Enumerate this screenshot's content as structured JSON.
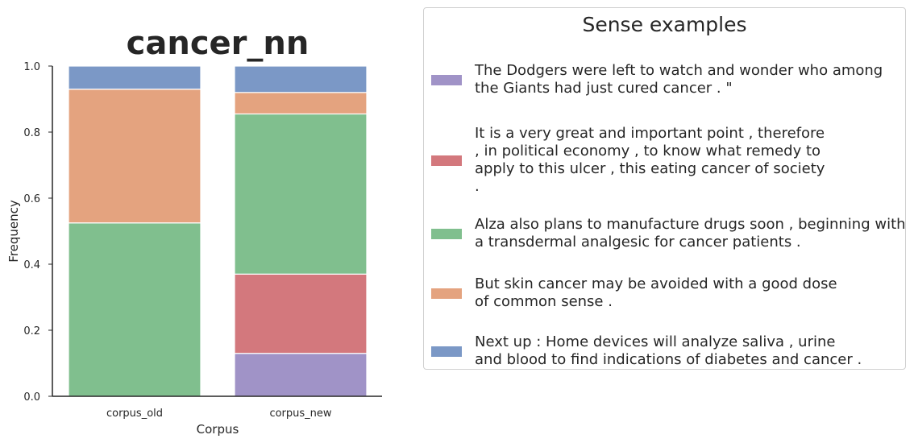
{
  "chart_data": {
    "type": "bar",
    "stacked": true,
    "title": "cancer_nn",
    "xlabel": "Corpus",
    "ylabel": "Frequency",
    "ylim": [
      0,
      1.0
    ],
    "yticks": [
      "0.0",
      "0.2",
      "0.4",
      "0.6",
      "0.8",
      "1.0"
    ],
    "categories": [
      "corpus_old",
      "corpus_new"
    ],
    "series": [
      {
        "color": "#a093c7",
        "values": [
          0.0,
          0.13
        ]
      },
      {
        "color": "#d3787d",
        "values": [
          0.0,
          0.24
        ]
      },
      {
        "color": "#80bf8e",
        "values": [
          0.525,
          0.485
        ]
      },
      {
        "color": "#e4a37f",
        "values": [
          0.405,
          0.065
        ]
      },
      {
        "color": "#7b98c6",
        "values": [
          0.07,
          0.08
        ]
      }
    ],
    "legend": {
      "title": "Sense examples",
      "placement": "outside-right",
      "entries": [
        {
          "color": "#a093c7",
          "lines": [
            "The Dodgers were left to watch and wonder who among",
            "the Giants had just cured cancer . \""
          ]
        },
        {
          "color": "#d3787d",
          "lines": [
            "It is a very great and important point , therefore",
            ", in political economy , to know what remedy to",
            "apply to this ulcer , this eating cancer of society",
            "."
          ]
        },
        {
          "color": "#80bf8e",
          "lines": [
            "Alza also plans to manufacture drugs soon , beginning with",
            "a transdermal analgesic for cancer patients ."
          ]
        },
        {
          "color": "#e4a37f",
          "lines": [
            "But skin cancer may be avoided with a good dose",
            "of common sense ."
          ]
        },
        {
          "color": "#7b98c6",
          "lines": [
            "Next up : Home devices will analyze saliva , urine",
            "and blood to find indications of diabetes and cancer ."
          ]
        }
      ]
    }
  }
}
